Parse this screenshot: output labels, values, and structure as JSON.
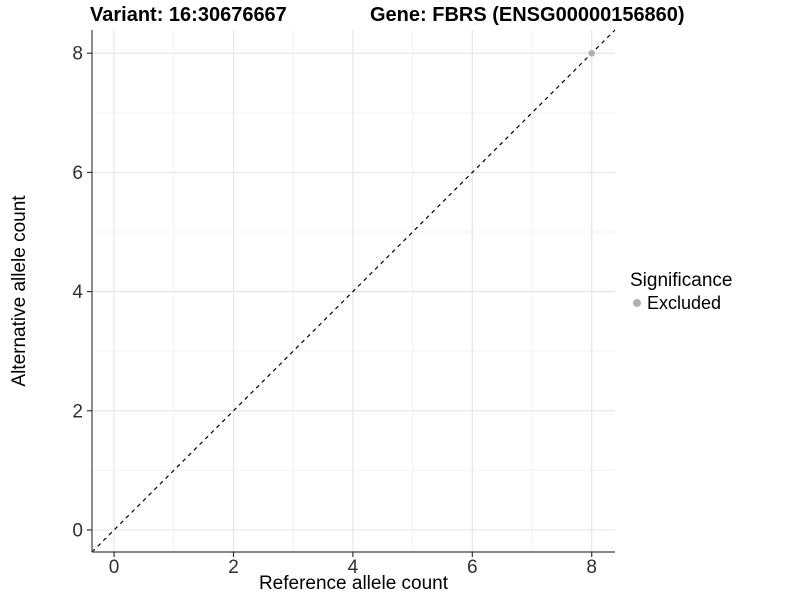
{
  "chart_data": {
    "type": "scatter",
    "title_left": "Variant: 16:30676667",
    "title_right": "Gene: FBRS (ENSG00000156860)",
    "xlabel": "Reference allele count",
    "ylabel": "Alternative allele count",
    "xlim": [
      -0.37,
      8.39
    ],
    "ylim": [
      -0.37,
      8.39
    ],
    "x_major_ticks": [
      0,
      2,
      4,
      6,
      8
    ],
    "x_minor_ticks": [
      1,
      3,
      5,
      7
    ],
    "y_major_ticks": [
      0,
      2,
      4,
      6,
      8
    ],
    "y_minor_ticks": [
      1,
      3,
      5,
      7
    ],
    "grid": "major and minor gridlines, white panel background",
    "reference_line": {
      "kind": "identity y=x",
      "style": "dashed",
      "color": "#000000"
    },
    "series": [
      {
        "name": "Excluded",
        "color": "#b0b0b0",
        "points": [
          [
            8,
            8
          ]
        ]
      }
    ],
    "legend": {
      "title": "Significance",
      "position": "right",
      "items": [
        {
          "label": "Excluded",
          "color": "#b0b0b0"
        }
      ]
    },
    "colors": {
      "major_grid": "#e6e6e6",
      "minor_grid": "#f2f2f2",
      "axis_line": "#404040",
      "tick_mark": "#333333",
      "tick_label": "#303030"
    }
  }
}
